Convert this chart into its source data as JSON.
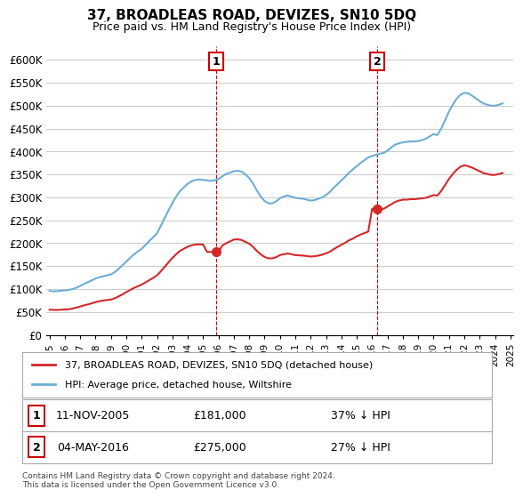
{
  "title": "37, BROADLEAS ROAD, DEVIZES, SN10 5DQ",
  "subtitle": "Price paid vs. HM Land Registry's House Price Index (HPI)",
  "legend_line1": "37, BROADLEAS ROAD, DEVIZES, SN10 5DQ (detached house)",
  "legend_line2": "HPI: Average price, detached house, Wiltshire",
  "footnote": "Contains HM Land Registry data © Crown copyright and database right 2024.\nThis data is licensed under the Open Government Licence v3.0.",
  "transaction1_label": "1",
  "transaction1_date": "11-NOV-2005",
  "transaction1_price": "£181,000",
  "transaction1_hpi": "37% ↓ HPI",
  "transaction2_label": "2",
  "transaction2_date": "04-MAY-2016",
  "transaction2_price": "£275,000",
  "transaction2_hpi": "27% ↓ HPI",
  "hpi_color": "#6baed6",
  "property_color": "#d62728",
  "marker_color": "#d62728",
  "background_color": "#ffffff",
  "grid_color": "#cccccc",
  "ylim": [
    0,
    630000
  ],
  "yticks": [
    0,
    50000,
    100000,
    150000,
    200000,
    250000,
    300000,
    350000,
    400000,
    450000,
    500000,
    550000,
    600000
  ],
  "ytick_labels": [
    "£0",
    "£50K",
    "£100K",
    "£150K",
    "£200K",
    "£250K",
    "£300K",
    "£350K",
    "£400K",
    "£450K",
    "£500K",
    "£550K",
    "£600K"
  ],
  "hpi_dates": [
    1995.0,
    1995.25,
    1995.5,
    1995.75,
    1996.0,
    1996.25,
    1996.5,
    1996.75,
    1997.0,
    1997.25,
    1997.5,
    1997.75,
    1998.0,
    1998.25,
    1998.5,
    1998.75,
    1999.0,
    1999.25,
    1999.5,
    1999.75,
    2000.0,
    2000.25,
    2000.5,
    2000.75,
    2001.0,
    2001.25,
    2001.5,
    2001.75,
    2002.0,
    2002.25,
    2002.5,
    2002.75,
    2003.0,
    2003.25,
    2003.5,
    2003.75,
    2004.0,
    2004.25,
    2004.5,
    2004.75,
    2005.0,
    2005.25,
    2005.5,
    2005.75,
    2006.0,
    2006.25,
    2006.5,
    2006.75,
    2007.0,
    2007.25,
    2007.5,
    2007.75,
    2008.0,
    2008.25,
    2008.5,
    2008.75,
    2009.0,
    2009.25,
    2009.5,
    2009.75,
    2010.0,
    2010.25,
    2010.5,
    2010.75,
    2011.0,
    2011.25,
    2011.5,
    2011.75,
    2012.0,
    2012.25,
    2012.5,
    2012.75,
    2013.0,
    2013.25,
    2013.5,
    2013.75,
    2014.0,
    2014.25,
    2014.5,
    2014.75,
    2015.0,
    2015.25,
    2015.5,
    2015.75,
    2016.0,
    2016.25,
    2016.5,
    2016.75,
    2017.0,
    2017.25,
    2017.5,
    2017.75,
    2018.0,
    2018.25,
    2018.5,
    2018.75,
    2019.0,
    2019.25,
    2019.5,
    2019.75,
    2020.0,
    2020.25,
    2020.5,
    2020.75,
    2021.0,
    2021.25,
    2021.5,
    2021.75,
    2022.0,
    2022.25,
    2022.5,
    2022.75,
    2023.0,
    2023.25,
    2023.5,
    2023.75,
    2024.0,
    2024.25,
    2024.5
  ],
  "hpi_values": [
    96000,
    95000,
    95500,
    96500,
    97000,
    98000,
    100000,
    103000,
    107000,
    111000,
    115000,
    119000,
    123000,
    126000,
    128000,
    130000,
    132000,
    137000,
    144000,
    152000,
    160000,
    168000,
    176000,
    182000,
    188000,
    196000,
    205000,
    213000,
    222000,
    238000,
    255000,
    272000,
    288000,
    302000,
    314000,
    322000,
    330000,
    335000,
    338000,
    339000,
    338000,
    337000,
    336000,
    337000,
    340000,
    346000,
    351000,
    354000,
    357000,
    358000,
    356000,
    350000,
    342000,
    330000,
    315000,
    302000,
    292000,
    287000,
    287000,
    291000,
    298000,
    302000,
    304000,
    302000,
    299000,
    298000,
    297000,
    295000,
    293000,
    294000,
    297000,
    300000,
    305000,
    312000,
    321000,
    329000,
    337000,
    345000,
    354000,
    361000,
    368000,
    375000,
    381000,
    387000,
    390000,
    393000,
    395000,
    397000,
    402000,
    409000,
    415000,
    418000,
    420000,
    421000,
    422000,
    422000,
    423000,
    425000,
    428000,
    433000,
    438000,
    436000,
    450000,
    468000,
    487000,
    502000,
    515000,
    524000,
    528000,
    527000,
    522000,
    516000,
    510000,
    505000,
    502000,
    500000,
    500000,
    502000,
    505000
  ],
  "property_dates": [
    1995.0,
    1995.25,
    1995.5,
    1995.75,
    1996.0,
    1996.25,
    1996.5,
    1996.75,
    1997.0,
    1997.25,
    1997.5,
    1997.75,
    1998.0,
    1998.25,
    1998.5,
    1998.75,
    1999.0,
    1999.25,
    1999.5,
    1999.75,
    2000.0,
    2000.25,
    2000.5,
    2000.75,
    2001.0,
    2001.25,
    2001.5,
    2001.75,
    2002.0,
    2002.25,
    2002.5,
    2002.75,
    2003.0,
    2003.25,
    2003.5,
    2003.75,
    2004.0,
    2004.25,
    2004.5,
    2004.75,
    2005.0,
    2005.25,
    2005.5,
    2005.75,
    2006.0,
    2006.25,
    2006.5,
    2006.75,
    2007.0,
    2007.25,
    2007.5,
    2007.75,
    2008.0,
    2008.25,
    2008.5,
    2008.75,
    2009.0,
    2009.25,
    2009.5,
    2009.75,
    2010.0,
    2010.25,
    2010.5,
    2010.75,
    2011.0,
    2011.25,
    2011.5,
    2011.75,
    2012.0,
    2012.25,
    2012.5,
    2012.75,
    2013.0,
    2013.25,
    2013.5,
    2013.75,
    2014.0,
    2014.25,
    2014.5,
    2014.75,
    2015.0,
    2015.25,
    2015.5,
    2015.75,
    2016.0,
    2016.25,
    2016.5,
    2016.75,
    2017.0,
    2017.25,
    2017.5,
    2017.75,
    2018.0,
    2018.25,
    2018.5,
    2018.75,
    2019.0,
    2019.25,
    2019.5,
    2019.75,
    2020.0,
    2020.25,
    2020.5,
    2020.75,
    2021.0,
    2021.25,
    2021.5,
    2021.75,
    2022.0,
    2022.25,
    2022.5,
    2022.75,
    2023.0,
    2023.25,
    2023.5,
    2023.75,
    2024.0,
    2024.25,
    2024.5
  ],
  "property_values": [
    55000,
    54500,
    54500,
    55000,
    55500,
    56000,
    57500,
    59500,
    62000,
    64500,
    66500,
    69000,
    71500,
    73500,
    75000,
    76000,
    77000,
    80000,
    84000,
    88500,
    93500,
    98000,
    102500,
    106000,
    110000,
    114500,
    119500,
    124500,
    130000,
    139000,
    148500,
    158500,
    168000,
    176000,
    183500,
    188000,
    192500,
    195500,
    197000,
    197500,
    197000,
    181000,
    181000,
    181000,
    181000,
    195000,
    200000,
    204000,
    208000,
    208500,
    207000,
    203000,
    199000,
    192000,
    183000,
    175500,
    170000,
    167000,
    167000,
    169500,
    174000,
    176000,
    177500,
    176000,
    174000,
    173500,
    173000,
    172000,
    171000,
    171500,
    173000,
    175000,
    178000,
    181500,
    187000,
    192000,
    196500,
    201000,
    206500,
    210000,
    215000,
    219000,
    222000,
    225500,
    275000,
    275000,
    275000,
    275000,
    280000,
    285000,
    290000,
    293000,
    295000,
    295000,
    296000,
    296000,
    297000,
    298000,
    299000,
    302000,
    305000,
    304000,
    314000,
    327000,
    340000,
    351000,
    360000,
    367000,
    370000,
    368000,
    365000,
    361000,
    357000,
    353000,
    351000,
    349000,
    349000,
    351000,
    353000
  ],
  "transaction1_x": 2005.83,
  "transaction1_y": 181000,
  "transaction2_x": 2016.33,
  "transaction2_y": 275000,
  "vline1_x": 2005.83,
  "vline2_x": 2016.33,
  "xtick_years": [
    1995,
    1996,
    1997,
    1998,
    1999,
    2000,
    2001,
    2002,
    2003,
    2004,
    2005,
    2006,
    2007,
    2008,
    2009,
    2010,
    2011,
    2012,
    2013,
    2014,
    2015,
    2016,
    2017,
    2018,
    2019,
    2020,
    2021,
    2022,
    2023,
    2024,
    2025
  ]
}
